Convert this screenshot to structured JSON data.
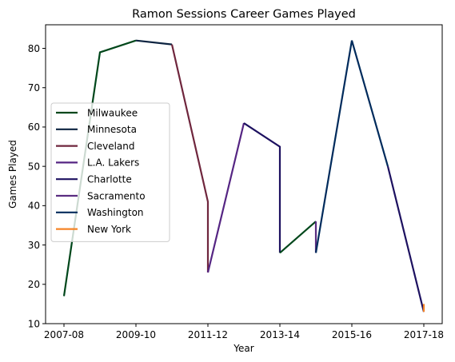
{
  "chart_data": {
    "type": "line",
    "title": "Ramon Sessions Career Games Played",
    "xlabel": "Year",
    "ylabel": "Games Played",
    "x_categories": [
      "2007-08",
      "2008-09",
      "2009-10",
      "2010-11",
      "2011-12",
      "2012-13",
      "2013-14",
      "2014-15",
      "2015-16",
      "2016-17",
      "2017-18"
    ],
    "x_tick_labels": [
      "2007-08",
      "2009-10",
      "2011-12",
      "2013-14",
      "2015-16",
      "2017-18"
    ],
    "ylim": [
      10,
      86
    ],
    "y_ticks": [
      10,
      20,
      30,
      40,
      50,
      60,
      70,
      80
    ],
    "grid": false,
    "legend_position": "center-left",
    "series": [
      {
        "name": "Milwaukee",
        "color": "#00471B",
        "points": [
          [
            "2007-08",
            17
          ],
          [
            "2008-09",
            79
          ],
          [
            "2009-10",
            82
          ]
        ]
      },
      {
        "name": "Minnesota",
        "color": "#0C2340",
        "points": [
          [
            "2009-10",
            82
          ],
          [
            "2010-11",
            81
          ]
        ]
      },
      {
        "name": "Cleveland",
        "color": "#6F263D",
        "points": [
          [
            "2010-11",
            81
          ],
          [
            "2011-12",
            41
          ],
          [
            "2011-12",
            23
          ]
        ]
      },
      {
        "name": "L.A. Lakers",
        "color": "#552583",
        "points": [
          [
            "2011-12",
            23
          ],
          [
            "2012-13",
            61
          ]
        ]
      },
      {
        "name": "Charlotte",
        "color": "#1D1160",
        "points": [
          [
            "2012-13",
            61
          ],
          [
            "2013-14",
            55
          ],
          [
            "2013-14",
            28
          ]
        ]
      },
      {
        "name": "Milwaukee",
        "color": "#00471B",
        "points": [
          [
            "2013-14",
            28
          ],
          [
            "2014-15",
            36
          ]
        ]
      },
      {
        "name": "Sacramento",
        "color": "#5A2D81",
        "points": [
          [
            "2014-15",
            36
          ],
          [
            "2014-15",
            28
          ]
        ]
      },
      {
        "name": "Washington",
        "color": "#002B5C",
        "points": [
          [
            "2014-15",
            28
          ],
          [
            "2015-16",
            82
          ],
          [
            "2016-17",
            50
          ]
        ]
      },
      {
        "name": "Charlotte",
        "color": "#1D1160",
        "points": [
          [
            "2016-17",
            50
          ],
          [
            "2017-18",
            13
          ]
        ]
      },
      {
        "name": "New York",
        "color": "#F58426",
        "points": [
          [
            "2017-18",
            15
          ],
          [
            "2017-18",
            13
          ]
        ]
      }
    ],
    "legend": [
      {
        "label": "Milwaukee",
        "color": "#00471B"
      },
      {
        "label": "Minnesota",
        "color": "#0C2340"
      },
      {
        "label": "Cleveland",
        "color": "#6F263D"
      },
      {
        "label": "L.A. Lakers",
        "color": "#552583"
      },
      {
        "label": "Charlotte",
        "color": "#1D1160"
      },
      {
        "label": "Sacramento",
        "color": "#5A2D81"
      },
      {
        "label": "Washington",
        "color": "#002B5C"
      },
      {
        "label": "New York",
        "color": "#F58426"
      }
    ]
  }
}
